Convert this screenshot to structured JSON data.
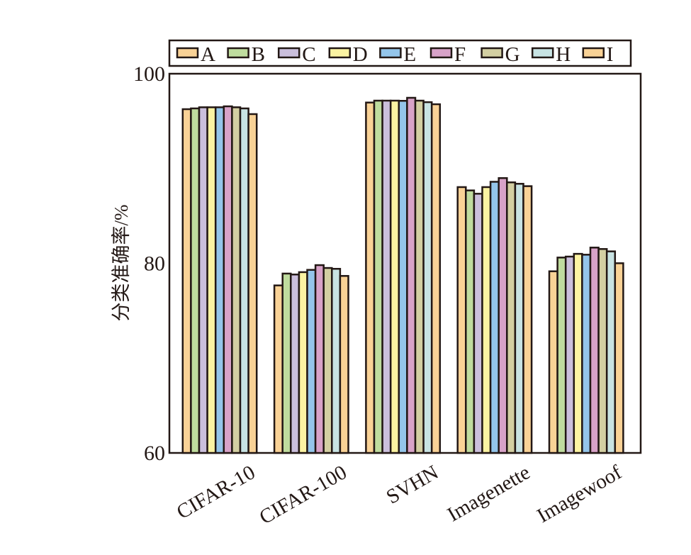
{
  "chart_data": {
    "type": "bar",
    "title": "",
    "xlabel": "",
    "ylabel": "分类准确率/%",
    "ylim": [
      60,
      100
    ],
    "yticks": [
      "60",
      "80",
      "100"
    ],
    "grid": false,
    "legend_placement": "top",
    "categories": [
      "CIFAR-10",
      "CIFAR-100",
      "SVHN",
      "Imagenette",
      "Imagewoof"
    ],
    "series": [
      {
        "name": "A",
        "color": "#f9d296",
        "values": [
          96.26,
          77.67,
          96.96,
          88.04,
          79.16
        ]
      },
      {
        "name": "B",
        "color": "#bfdc9e",
        "values": [
          96.34,
          78.92,
          97.16,
          87.69,
          80.61
        ]
      },
      {
        "name": "C",
        "color": "#cbbfdc",
        "values": [
          96.46,
          78.82,
          97.16,
          87.34,
          80.71
        ]
      },
      {
        "name": "D",
        "color": "#fbf3a2",
        "values": [
          96.46,
          79.07,
          97.16,
          88.04,
          81.0
        ]
      },
      {
        "name": "E",
        "color": "#94c5ea",
        "values": [
          96.46,
          79.31,
          97.14,
          88.6,
          80.91
        ]
      },
      {
        "name": "F",
        "color": "#d8a2c8",
        "values": [
          96.56,
          79.81,
          97.46,
          88.99,
          81.66
        ]
      },
      {
        "name": "G",
        "color": "#d3cfa2",
        "values": [
          96.46,
          79.51,
          97.16,
          88.54,
          81.51
        ]
      },
      {
        "name": "H",
        "color": "#c8e3e3",
        "values": [
          96.34,
          79.42,
          97.0,
          88.39,
          81.26
        ]
      },
      {
        "name": "I",
        "color": "#f9d296",
        "values": [
          95.74,
          78.67,
          96.78,
          88.14,
          80.01
        ]
      }
    ]
  }
}
